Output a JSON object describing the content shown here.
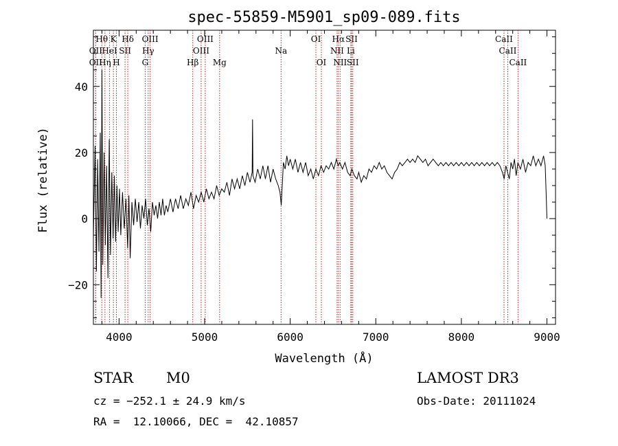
{
  "chart_data": {
    "type": "line",
    "title": "spec-55859-M5901_sp09-089.fits",
    "xlabel": "Wavelength (Å)",
    "ylabel": "Flux (relative)",
    "xlim": [
      3700,
      9100
    ],
    "ylim": [
      -32,
      57
    ],
    "x_ticks": [
      4000,
      5000,
      6000,
      7000,
      8000,
      9000
    ],
    "y_ticks": [
      -20,
      0,
      20,
      40
    ],
    "x_tick_labels": [
      "4000",
      "5000",
      "6000",
      "7000",
      "8000",
      "9000"
    ],
    "y_tick_labels": [
      "−20",
      "0",
      "20",
      "40"
    ],
    "line_color": "#000000",
    "marker_color": "#b22222",
    "series": [
      {
        "name": "flux",
        "points": [
          [
            3700,
            -6
          ],
          [
            3720,
            22
          ],
          [
            3735,
            -16
          ],
          [
            3750,
            18
          ],
          [
            3765,
            -10
          ],
          [
            3780,
            26
          ],
          [
            3790,
            -24
          ],
          [
            3800,
            45
          ],
          [
            3810,
            -14
          ],
          [
            3825,
            20
          ],
          [
            3840,
            -8
          ],
          [
            3855,
            16
          ],
          [
            3870,
            -18
          ],
          [
            3885,
            24
          ],
          [
            3900,
            -11
          ],
          [
            3915,
            14
          ],
          [
            3930,
            -6
          ],
          [
            3945,
            13
          ],
          [
            3960,
            -7
          ],
          [
            3975,
            10
          ],
          [
            3990,
            -4
          ],
          [
            4005,
            9
          ],
          [
            4020,
            -5
          ],
          [
            4040,
            8
          ],
          [
            4060,
            -3
          ],
          [
            4080,
            6
          ],
          [
            4100,
            -9
          ],
          [
            4115,
            7
          ],
          [
            4130,
            -12
          ],
          [
            4150,
            5
          ],
          [
            4170,
            -2
          ],
          [
            4190,
            6
          ],
          [
            4210,
            -1
          ],
          [
            4230,
            5
          ],
          [
            4250,
            -3
          ],
          [
            4270,
            4
          ],
          [
            4290,
            0
          ],
          [
            4310,
            6
          ],
          [
            4330,
            -2
          ],
          [
            4350,
            3
          ],
          [
            4370,
            -4
          ],
          [
            4390,
            5
          ],
          [
            4410,
            1
          ],
          [
            4430,
            4
          ],
          [
            4450,
            0
          ],
          [
            4470,
            5
          ],
          [
            4490,
            1
          ],
          [
            4510,
            6
          ],
          [
            4530,
            1
          ],
          [
            4550,
            4
          ],
          [
            4570,
            2
          ],
          [
            4600,
            6
          ],
          [
            4630,
            2
          ],
          [
            4660,
            6
          ],
          [
            4690,
            3
          ],
          [
            4720,
            7
          ],
          [
            4750,
            3
          ],
          [
            4780,
            6
          ],
          [
            4810,
            4
          ],
          [
            4840,
            8
          ],
          [
            4870,
            3
          ],
          [
            4900,
            7
          ],
          [
            4930,
            5
          ],
          [
            4960,
            8
          ],
          [
            4990,
            5
          ],
          [
            5020,
            9
          ],
          [
            5050,
            6
          ],
          [
            5080,
            8
          ],
          [
            5110,
            6
          ],
          [
            5140,
            10
          ],
          [
            5170,
            7
          ],
          [
            5200,
            9
          ],
          [
            5230,
            8
          ],
          [
            5260,
            11
          ],
          [
            5290,
            7
          ],
          [
            5320,
            12
          ],
          [
            5350,
            9
          ],
          [
            5380,
            12
          ],
          [
            5410,
            9
          ],
          [
            5440,
            13
          ],
          [
            5470,
            10
          ],
          [
            5500,
            14
          ],
          [
            5530,
            11
          ],
          [
            5555,
            14
          ],
          [
            5560,
            30
          ],
          [
            5565,
            13
          ],
          [
            5590,
            11
          ],
          [
            5620,
            15
          ],
          [
            5650,
            12
          ],
          [
            5680,
            16
          ],
          [
            5710,
            12
          ],
          [
            5740,
            16
          ],
          [
            5770,
            11
          ],
          [
            5800,
            15
          ],
          [
            5830,
            12
          ],
          [
            5860,
            10
          ],
          [
            5880,
            8
          ],
          [
            5895,
            4
          ],
          [
            5905,
            9
          ],
          [
            5920,
            17
          ],
          [
            5940,
            15
          ],
          [
            5960,
            19
          ],
          [
            5980,
            16
          ],
          [
            6000,
            18
          ],
          [
            6030,
            15
          ],
          [
            6060,
            18
          ],
          [
            6090,
            14
          ],
          [
            6120,
            17
          ],
          [
            6150,
            14
          ],
          [
            6180,
            17
          ],
          [
            6210,
            13
          ],
          [
            6240,
            15
          ],
          [
            6270,
            12
          ],
          [
            6300,
            15
          ],
          [
            6330,
            13
          ],
          [
            6360,
            16
          ],
          [
            6390,
            14
          ],
          [
            6420,
            16
          ],
          [
            6450,
            15
          ],
          [
            6480,
            17
          ],
          [
            6510,
            15
          ],
          [
            6540,
            18
          ],
          [
            6560,
            16
          ],
          [
            6580,
            17
          ],
          [
            6610,
            15
          ],
          [
            6640,
            17
          ],
          [
            6670,
            14
          ],
          [
            6700,
            13
          ],
          [
            6720,
            15
          ],
          [
            6750,
            13
          ],
          [
            6780,
            12
          ],
          [
            6800,
            14
          ],
          [
            6830,
            11
          ],
          [
            6860,
            13
          ],
          [
            6890,
            12
          ],
          [
            6920,
            15
          ],
          [
            6950,
            14
          ],
          [
            6980,
            16
          ],
          [
            7010,
            15
          ],
          [
            7040,
            17
          ],
          [
            7070,
            15
          ],
          [
            7100,
            16
          ],
          [
            7130,
            14
          ],
          [
            7160,
            13
          ],
          [
            7190,
            12
          ],
          [
            7220,
            14
          ],
          [
            7250,
            15
          ],
          [
            7280,
            17
          ],
          [
            7310,
            16
          ],
          [
            7340,
            17
          ],
          [
            7370,
            18
          ],
          [
            7400,
            17
          ],
          [
            7430,
            18
          ],
          [
            7460,
            17
          ],
          [
            7490,
            19
          ],
          [
            7520,
            18
          ],
          [
            7550,
            17
          ],
          [
            7580,
            18
          ],
          [
            7610,
            16
          ],
          [
            7640,
            17
          ],
          [
            7670,
            18
          ],
          [
            7700,
            17
          ],
          [
            7730,
            16
          ],
          [
            7760,
            17
          ],
          [
            7790,
            16
          ],
          [
            7820,
            17
          ],
          [
            7850,
            16
          ],
          [
            7880,
            17
          ],
          [
            7910,
            16
          ],
          [
            7940,
            17
          ],
          [
            7970,
            16
          ],
          [
            8000,
            17
          ],
          [
            8030,
            16
          ],
          [
            8060,
            17
          ],
          [
            8090,
            16
          ],
          [
            8120,
            17
          ],
          [
            8150,
            16
          ],
          [
            8180,
            17
          ],
          [
            8210,
            16
          ],
          [
            8240,
            17
          ],
          [
            8270,
            16
          ],
          [
            8300,
            17
          ],
          [
            8330,
            16
          ],
          [
            8360,
            17
          ],
          [
            8390,
            16
          ],
          [
            8420,
            17
          ],
          [
            8450,
            16
          ],
          [
            8480,
            14
          ],
          [
            8500,
            12
          ],
          [
            8520,
            16
          ],
          [
            8540,
            14
          ],
          [
            8560,
            12
          ],
          [
            8580,
            17
          ],
          [
            8600,
            15
          ],
          [
            8620,
            18
          ],
          [
            8640,
            13
          ],
          [
            8660,
            17
          ],
          [
            8690,
            15
          ],
          [
            8720,
            18
          ],
          [
            8750,
            14
          ],
          [
            8780,
            17
          ],
          [
            8810,
            16
          ],
          [
            8840,
            19
          ],
          [
            8870,
            16
          ],
          [
            8900,
            18
          ],
          [
            8930,
            16
          ],
          [
            8960,
            19
          ],
          [
            8980,
            16
          ],
          [
            8990,
            8
          ],
          [
            9000,
            0
          ]
        ]
      }
    ],
    "line_markers": [
      {
        "label": "OII",
        "x": 3727,
        "row": 3
      },
      {
        "label": "Hθ",
        "x": 3798,
        "row": 1
      },
      {
        "label": "OII",
        "x": 3727,
        "row": 2
      },
      {
        "label": "Hη",
        "x": 3835,
        "row": 3
      },
      {
        "label": "K",
        "x": 3934,
        "row": 1
      },
      {
        "label": "HeI",
        "x": 3889,
        "row": 2
      },
      {
        "label": "H",
        "x": 3969,
        "row": 3
      },
      {
        "label": "SII",
        "x": 4070,
        "row": 2
      },
      {
        "label": "Hδ",
        "x": 4102,
        "row": 1
      },
      {
        "label": "OIII",
        "x": 4363,
        "row": 1
      },
      {
        "label": "Hγ",
        "x": 4340,
        "row": 2
      },
      {
        "label": "G",
        "x": 4305,
        "row": 3
      },
      {
        "label": "Hβ",
        "x": 4861,
        "row": 3
      },
      {
        "label": "OIII",
        "x": 5007,
        "row": 1
      },
      {
        "label": "OIII",
        "x": 4959,
        "row": 2
      },
      {
        "label": "Mg",
        "x": 5175,
        "row": 3
      },
      {
        "label": "Na",
        "x": 5893,
        "row": 2
      },
      {
        "label": "OI",
        "x": 6300,
        "row": 1
      },
      {
        "label": "OI",
        "x": 6364,
        "row": 3
      },
      {
        "label": "Hα",
        "x": 6563,
        "row": 1
      },
      {
        "label": "NII",
        "x": 6548,
        "row": 2
      },
      {
        "label": "NII",
        "x": 6583,
        "row": 3
      },
      {
        "label": "SII",
        "x": 6717,
        "row": 1
      },
      {
        "label": "Li",
        "x": 6708,
        "row": 2
      },
      {
        "label": "SII",
        "x": 6731,
        "row": 3
      },
      {
        "label": "CaII",
        "x": 8498,
        "row": 1
      },
      {
        "label": "CaII",
        "x": 8542,
        "row": 2
      },
      {
        "label": "CaII",
        "x": 8662,
        "row": 3
      }
    ]
  },
  "info": {
    "object_class": "STAR",
    "subclass": "M0",
    "survey": "LAMOST DR3",
    "redshift_line": "cz = −252.1 ± 24.9 km/s",
    "obs_date_line": "Obs-Date: 20111024",
    "coords_line": "RA =  12.10066, DEC =  42.10857"
  }
}
